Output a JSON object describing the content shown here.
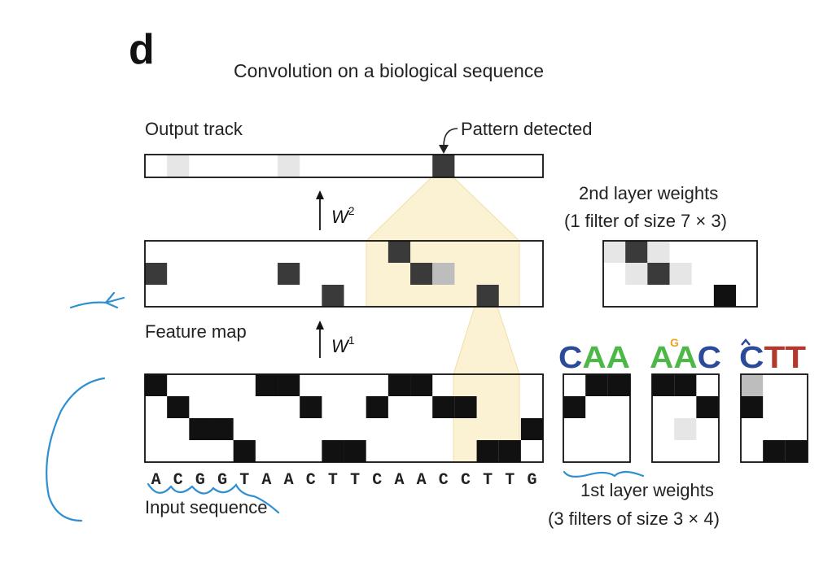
{
  "panel_label": "d",
  "title": "Convolution on a biological sequence",
  "output_track": {
    "label": "Output track",
    "annotation": "Pattern detected"
  },
  "feature_map": {
    "label": "Feature map"
  },
  "weights": {
    "w2_base": "W",
    "w2_sup": "2",
    "w1_base": "W",
    "w1_sup": "1"
  },
  "second_layer": {
    "title_line1": "2nd layer weights",
    "title_line2": "(1 filter of size 7 × 3)"
  },
  "first_layer": {
    "title_line1": "1st layer weights",
    "title_line2": "(3 filters of size 3 × 4)"
  },
  "logos": [
    {
      "letters": [
        "C",
        "A",
        "A"
      ],
      "colors": [
        "#2b4a99",
        "#4db848",
        "#4db848"
      ]
    },
    {
      "letters": [
        "A",
        "A",
        "C"
      ],
      "colors": [
        "#4db848",
        "#4db848",
        "#2b4a99"
      ],
      "small_letters": [
        "G"
      ],
      "small_colors": [
        "#f2a01c"
      ]
    },
    {
      "letters": [
        "C",
        "T",
        "T"
      ],
      "colors": [
        "#2b4a99",
        "#b03a2e",
        "#b03a2e"
      ]
    }
  ],
  "input_sequence": {
    "label": "Input sequence",
    "letters": [
      "A",
      "C",
      "G",
      "G",
      "T",
      "A",
      "A",
      "C",
      "T",
      "T",
      "C",
      "A",
      "A",
      "C",
      "C",
      "T",
      "T",
      "G"
    ]
  },
  "colors": {
    "cell_dark": "#111111",
    "cell_mid": "#3a3a3a",
    "cell_light": "#bdbdbd",
    "cell_faint": "#e6e6e6",
    "highlight": "#fbf1d3",
    "annotation_ink": "#2f8fd0"
  }
}
